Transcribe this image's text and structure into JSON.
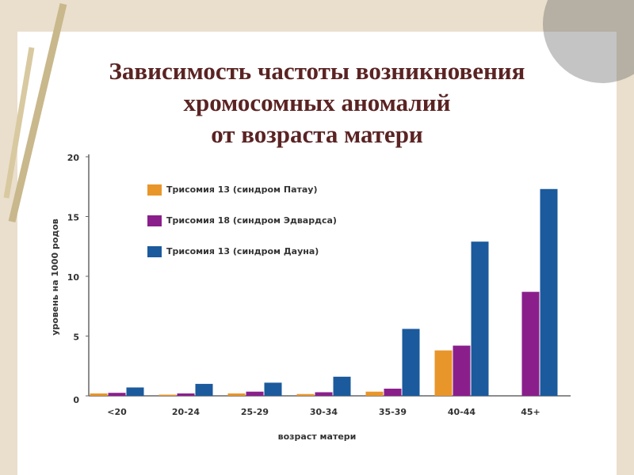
{
  "chart_data": {
    "type": "bar",
    "title": "Зависимость частоты возникновения хромосомных аномалий от возраста матери",
    "x_label": "возраст матери",
    "y_label": "уровень на 1000 родов",
    "categories": [
      "<20",
      "20-24",
      "25-29",
      "30-34",
      "35-39",
      "40-44",
      "45+"
    ],
    "series": [
      {
        "name": "Трисомия 13 (синдром Патау)",
        "color": "#e8962a",
        "values": [
          0.2,
          0.1,
          0.2,
          0.15,
          0.35,
          3.8,
          null
        ]
      },
      {
        "name": "Трисомия 18 (синдром Эдвардса)",
        "color": "#8a1f8c",
        "values": [
          0.25,
          0.2,
          0.35,
          0.3,
          0.6,
          4.2,
          8.7
        ]
      },
      {
        "name": "Трисомия 13 (синдром Дауна)",
        "color": "#1b5a9c",
        "values": [
          0.7,
          1.0,
          1.1,
          1.6,
          5.6,
          12.9,
          17.3
        ]
      }
    ],
    "ylim": [
      0,
      20
    ],
    "yticks": [
      0,
      5,
      10,
      15,
      20
    ]
  }
}
